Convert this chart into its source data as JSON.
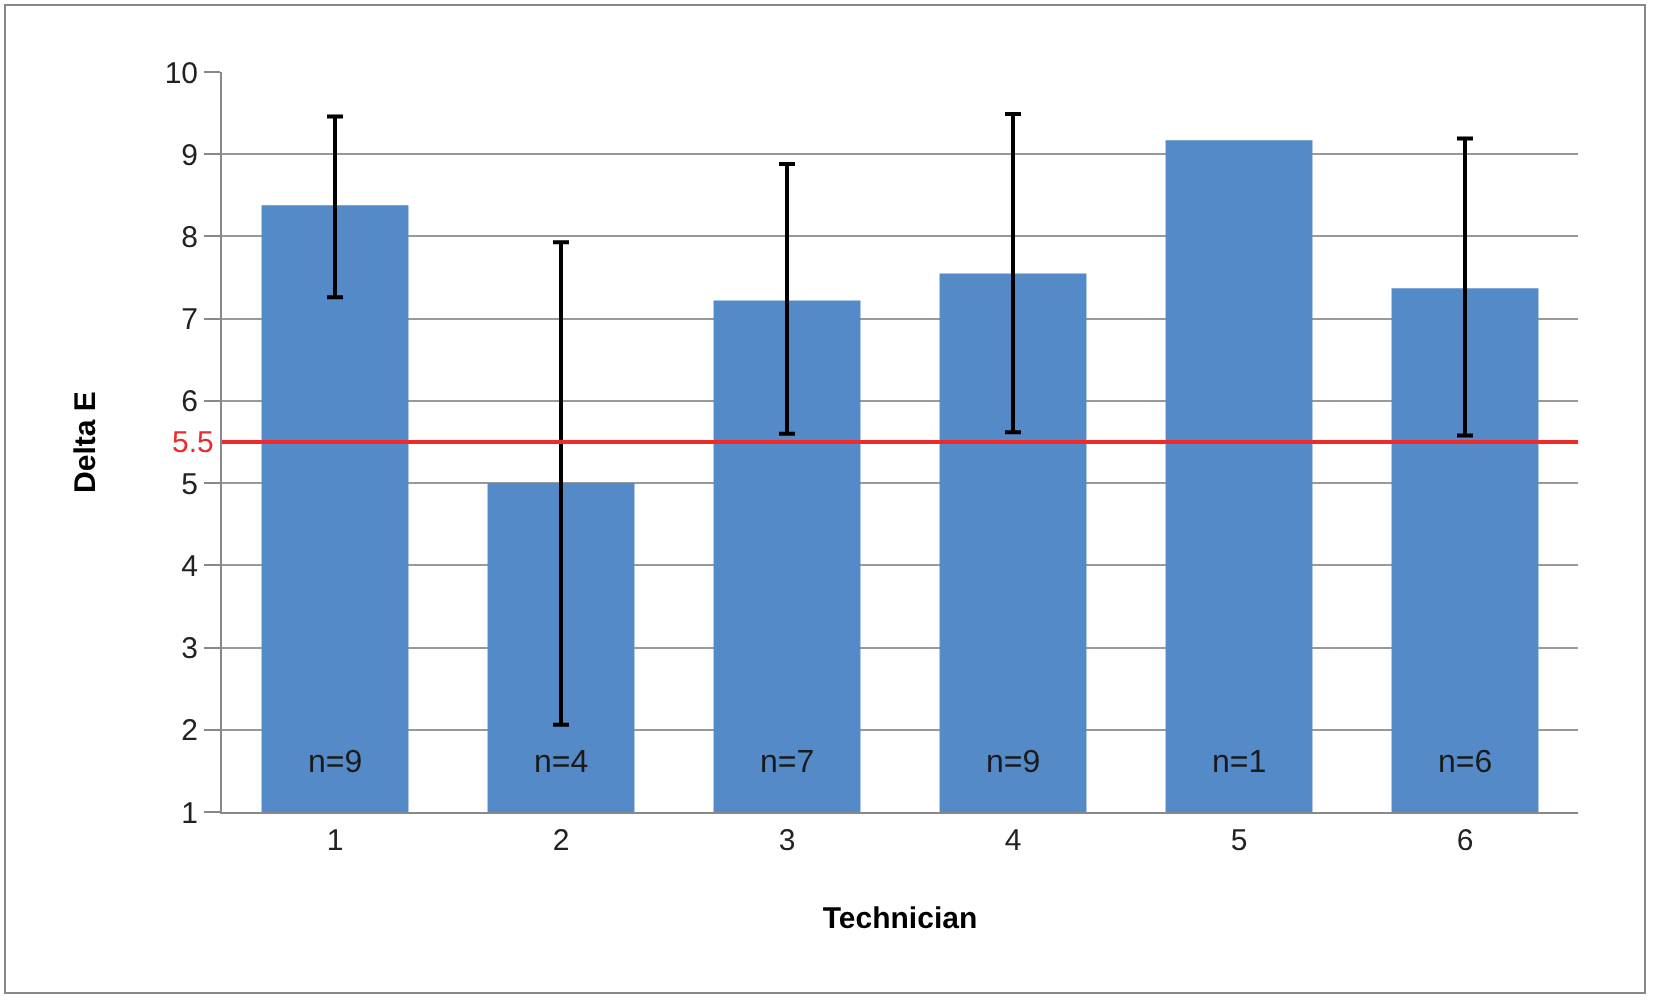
{
  "chart_data": {
    "type": "bar",
    "xlabel": "Technician",
    "ylabel": "Delta E",
    "categories": [
      "1",
      "2",
      "3",
      "4",
      "5",
      "6"
    ],
    "values": [
      8.38,
      5.0,
      7.22,
      7.55,
      9.17,
      7.37
    ],
    "errors": [
      [
        7.26,
        9.46
      ],
      [
        2.06,
        7.93
      ],
      [
        5.6,
        8.88
      ],
      [
        5.62,
        9.49
      ],
      null,
      [
        5.58,
        9.19
      ]
    ],
    "color": "#558ac9",
    "ylim": [
      1,
      10
    ],
    "yticks": [
      1,
      2,
      3,
      4,
      5,
      6,
      7,
      8,
      9,
      10
    ],
    "grid": "y",
    "ref_lines": [
      {
        "axis": "y",
        "value": 5.5,
        "label": "5.5",
        "color": "#ee2a2a"
      }
    ],
    "annotations": [
      "n=9",
      "n=4",
      "n=7",
      "n=9",
      "n=1",
      "n=6"
    ],
    "legend": false
  }
}
